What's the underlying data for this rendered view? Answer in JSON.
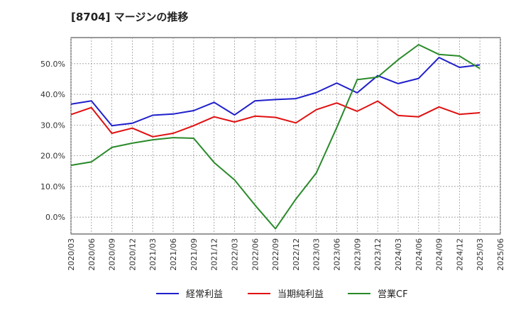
{
  "chart_data": {
    "type": "line",
    "title": "[8704]  マージンの推移",
    "xlabel": "",
    "ylabel": "",
    "ylim": [
      -5.5,
      58.5
    ],
    "yticks": [
      0,
      10,
      20,
      30,
      40,
      50
    ],
    "ytick_labels": [
      "0.0%",
      "10.0%",
      "20.0%",
      "30.0%",
      "40.0%",
      "50.0%"
    ],
    "x": [
      "2020/03",
      "2020/06",
      "2020/09",
      "2020/12",
      "2021/03",
      "2021/06",
      "2021/09",
      "2021/12",
      "2022/03",
      "2022/06",
      "2022/09",
      "2022/12",
      "2023/03",
      "2023/06",
      "2023/09",
      "2023/12",
      "2024/03",
      "2024/06",
      "2024/09",
      "2024/12",
      "2025/03",
      "2025/06"
    ],
    "grid": true,
    "legend_position": "bottom",
    "series": [
      {
        "name": "経常利益",
        "color": "#1f1fcc",
        "values": [
          36.8,
          37.9,
          29.8,
          30.6,
          33.2,
          33.6,
          34.7,
          37.4,
          33.3,
          37.9,
          38.3,
          38.6,
          40.6,
          43.7,
          40.5,
          46.1,
          43.5,
          45.2,
          52.0,
          48.8,
          49.6,
          null
        ]
      },
      {
        "name": "当期純利益",
        "color": "#e01010",
        "values": [
          33.4,
          35.7,
          27.3,
          29.0,
          26.2,
          27.3,
          29.8,
          32.7,
          31.0,
          32.9,
          32.5,
          30.7,
          35.0,
          37.2,
          34.5,
          37.8,
          33.1,
          32.7,
          35.9,
          33.5,
          34.0,
          null
        ]
      },
      {
        "name": "営業CF",
        "color": "#2a8a2a",
        "values": [
          16.9,
          18.0,
          22.7,
          24.1,
          25.2,
          25.9,
          25.7,
          17.8,
          12.1,
          3.9,
          -3.8,
          5.9,
          14.4,
          29.2,
          44.8,
          45.6,
          51.3,
          56.2,
          53.0,
          52.5,
          48.4,
          null
        ]
      }
    ]
  }
}
